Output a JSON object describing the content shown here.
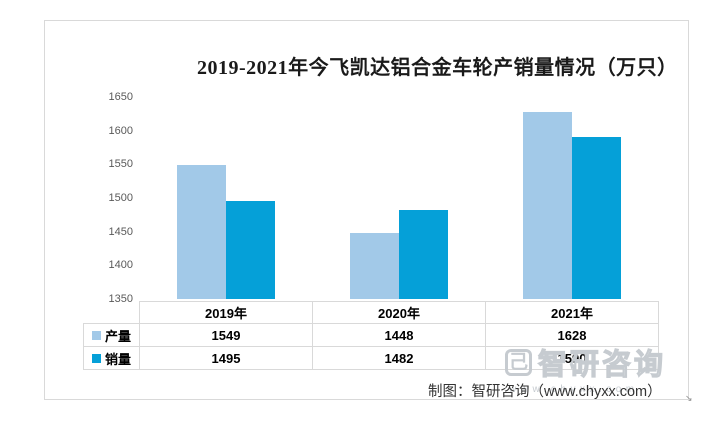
{
  "chart_data": {
    "type": "bar",
    "title": "2019-2021年今飞凯达铝合金车轮产销量情况（万只）",
    "categories": [
      "2019年",
      "2020年",
      "2021年"
    ],
    "series": [
      {
        "name": "产量",
        "color": "#a2c9e8",
        "values": [
          1549,
          1448,
          1628
        ]
      },
      {
        "name": "销量",
        "color": "#05a0d8",
        "values": [
          1495,
          1482,
          1590
        ]
      }
    ],
    "ylim": [
      1350,
      1650
    ],
    "yticks": [
      1350,
      1400,
      1450,
      1500,
      1550,
      1600,
      1650
    ],
    "xlabel": "",
    "ylabel": "",
    "grid": false,
    "legend_position": "data-table-left",
    "data_table_shown": true
  },
  "watermark": {
    "logo_glyph": "己",
    "text": "智研咨询",
    "url": "www.chyxx.com"
  },
  "footer": {
    "credit": "制图：智研咨询（www.chyxx.com）"
  },
  "colors": {
    "border": "#d9d9d9",
    "title_text": "#1a1a1a",
    "axis_text": "#595959",
    "watermark": "#c6cbd0"
  }
}
